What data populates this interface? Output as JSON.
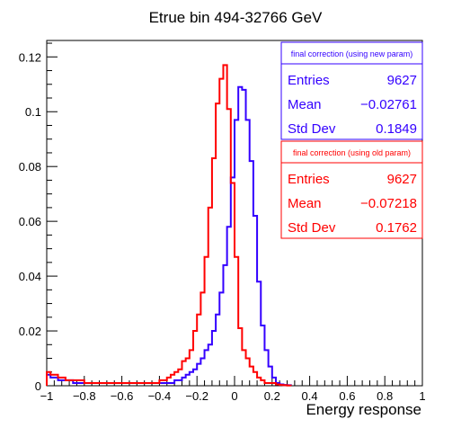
{
  "chart_data": {
    "type": "histogram",
    "title": "Etrue bin 494-32766 GeV",
    "xlabel": "Energy response",
    "ylabel": "",
    "xlim": [
      -1,
      1
    ],
    "ylim": [
      0,
      0.126
    ],
    "grid": false,
    "bin_width": 0.02,
    "x_ticks": [
      -1,
      -0.8,
      -0.6,
      -0.4,
      -0.2,
      0,
      0.2,
      0.4,
      0.6,
      0.8,
      1
    ],
    "x_tick_labels": [
      "−1",
      "−0.8",
      "−0.6",
      "−0.4",
      "−0.2",
      "0",
      "0.2",
      "0.4",
      "0.6",
      "0.8",
      "1"
    ],
    "y_ticks": [
      0,
      0.02,
      0.04,
      0.06,
      0.08,
      0.1,
      0.12
    ],
    "y_tick_labels": [
      "0",
      "0.02",
      "0.04",
      "0.06",
      "0.08",
      "0.1",
      "0.12"
    ],
    "series": [
      {
        "name": "final correction (using new param)",
        "color": "#3300ff",
        "bin_edges_start": -1,
        "values": [
          0.004,
          0.003,
          0.003,
          0.002,
          0.002,
          0.002,
          0.002,
          0.001,
          0.001,
          0.001,
          0.001,
          0.001,
          0.001,
          0.001,
          0.001,
          0.001,
          0.001,
          0.001,
          0.001,
          0.001,
          0.001,
          0.001,
          0.001,
          0.001,
          0.001,
          0.001,
          0.001,
          0.001,
          0.001,
          0.001,
          0.001,
          0.001,
          0.001,
          0.001,
          0.002,
          0.002,
          0.003,
          0.004,
          0.005,
          0.006,
          0.008,
          0.01,
          0.013,
          0.015,
          0.02,
          0.026,
          0.034,
          0.044,
          0.058,
          0.076,
          0.097,
          0.109,
          0.108,
          0.097,
          0.082,
          0.062,
          0.038,
          0.022,
          0.013,
          0.007,
          0.003,
          0.001,
          0.0005,
          0.0003,
          0.0002
        ]
      },
      {
        "name": "final correction (using old param)",
        "color": "#ff0000",
        "bin_edges_start": -1,
        "values": [
          0.005,
          0.004,
          0.004,
          0.003,
          0.003,
          0.002,
          0.002,
          0.002,
          0.002,
          0.002,
          0.001,
          0.001,
          0.001,
          0.001,
          0.001,
          0.001,
          0.001,
          0.001,
          0.001,
          0.001,
          0.001,
          0.001,
          0.001,
          0.001,
          0.001,
          0.001,
          0.001,
          0.001,
          0.001,
          0.001,
          0.002,
          0.002,
          0.003,
          0.004,
          0.005,
          0.006,
          0.009,
          0.01,
          0.013,
          0.02,
          0.026,
          0.034,
          0.047,
          0.065,
          0.083,
          0.103,
          0.112,
          0.117,
          0.101,
          0.074,
          0.047,
          0.021,
          0.013,
          0.01,
          0.007,
          0.005,
          0.003,
          0.002,
          0.001,
          0.001,
          0.001,
          0.0005,
          0.0003,
          0.0002,
          0.0001
        ]
      }
    ],
    "stats_boxes": [
      {
        "title": "final correction (using new param)",
        "color": "#3300ff",
        "rows": [
          {
            "label": "Entries",
            "value": "9627"
          },
          {
            "label": "Mean",
            "value": "−0.02761"
          },
          {
            "label": "Std Dev",
            "value": "0.1849"
          }
        ]
      },
      {
        "title": "final correction (using old param)",
        "color": "#ff0000",
        "rows": [
          {
            "label": "Entries",
            "value": "9627"
          },
          {
            "label": "Mean",
            "value": "−0.07218"
          },
          {
            "label": "Std Dev",
            "value": "0.1762"
          }
        ]
      }
    ]
  }
}
